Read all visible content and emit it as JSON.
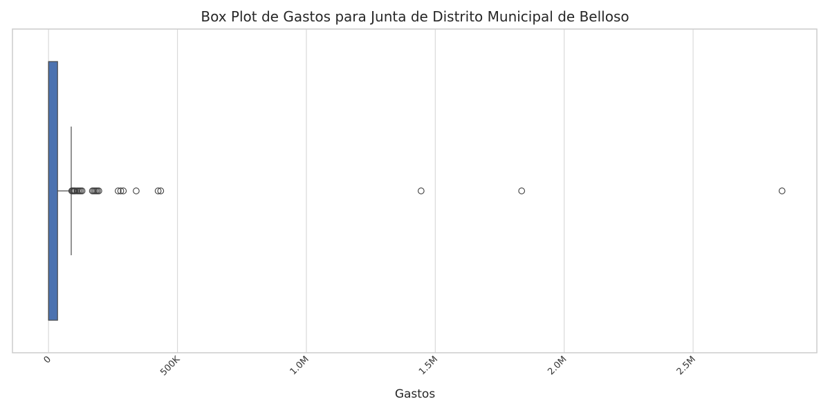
{
  "chart_data": {
    "type": "box",
    "orientation": "horizontal",
    "title": "Box Plot de Gastos para Junta de Distrito Municipal de Belloso",
    "xlabel": "Gastos",
    "ylabel": "",
    "xlim": [
      -140000,
      2980000
    ],
    "xticks": [
      {
        "value": 0,
        "label": "0"
      },
      {
        "value": 500000,
        "label": "500K"
      },
      {
        "value": 1000000,
        "label": "1.0M"
      },
      {
        "value": 1500000,
        "label": "1.5M"
      },
      {
        "value": 2000000,
        "label": "2.0M"
      },
      {
        "value": 2500000,
        "label": "2.5M"
      }
    ],
    "grid": true,
    "box": {
      "min": 0,
      "q1": 0,
      "median": 0,
      "q3": 35000,
      "max": 88000,
      "color": "#4c72b0"
    },
    "outliers": [
      90000,
      93000,
      97000,
      100000,
      104000,
      110000,
      115000,
      120000,
      125000,
      130000,
      170000,
      175000,
      180000,
      185000,
      190000,
      195000,
      270000,
      280000,
      290000,
      340000,
      425000,
      435000,
      1445000,
      1835000,
      2845000
    ]
  }
}
